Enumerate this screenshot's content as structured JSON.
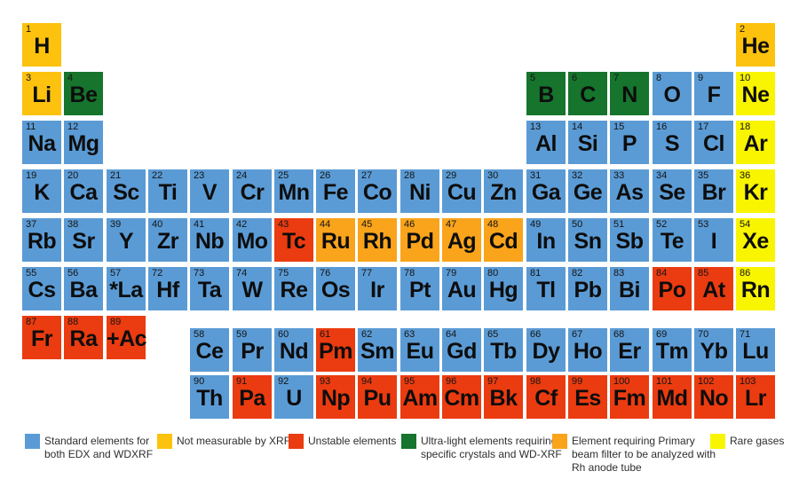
{
  "categories": {
    "std": {
      "name": "standard-edx-wdxrf",
      "color": "#5B9BD5"
    },
    "gold": {
      "name": "not-measurable-by-xrf",
      "color": "#FCC20E"
    },
    "red": {
      "name": "unstable-elements",
      "color": "#EB3B10"
    },
    "green": {
      "name": "ultra-light-elements",
      "color": "#16742D"
    },
    "orange": {
      "name": "primary-beam-filter",
      "color": "#F9A41B"
    },
    "yellow": {
      "name": "rare-gases",
      "color": "#F9F400"
    }
  },
  "legend": [
    {
      "cat": "std",
      "label": "Standard  elements for\nboth EDX and WDXRF"
    },
    {
      "cat": "gold",
      "label": "Not measurable by XRF"
    },
    {
      "cat": "red",
      "label": "Unstable elements"
    },
    {
      "cat": "green",
      "label": "Ultra-light elements requiring\nspecific crystals and WD-XRF"
    },
    {
      "cat": "orange",
      "label": "Element requiring Primary\nbeam filter to be analyzed with\nRh anode tube"
    },
    {
      "cat": "yellow",
      "label": "Rare gases"
    }
  ],
  "elements": [
    {
      "n": 1,
      "sym": "H",
      "row": 1,
      "col": 1,
      "cat": "gold"
    },
    {
      "n": 2,
      "sym": "He",
      "row": 1,
      "col": 18,
      "cat": "gold"
    },
    {
      "n": 3,
      "sym": "Li",
      "row": 2,
      "col": 1,
      "cat": "gold"
    },
    {
      "n": 4,
      "sym": "Be",
      "row": 2,
      "col": 2,
      "cat": "green"
    },
    {
      "n": 5,
      "sym": "B",
      "row": 2,
      "col": 13,
      "cat": "green"
    },
    {
      "n": 6,
      "sym": "C",
      "row": 2,
      "col": 14,
      "cat": "green"
    },
    {
      "n": 7,
      "sym": "N",
      "row": 2,
      "col": 15,
      "cat": "green"
    },
    {
      "n": 8,
      "sym": "O",
      "row": 2,
      "col": 16,
      "cat": "std"
    },
    {
      "n": 9,
      "sym": "F",
      "row": 2,
      "col": 17,
      "cat": "std"
    },
    {
      "n": 10,
      "sym": "Ne",
      "row": 2,
      "col": 18,
      "cat": "yellow"
    },
    {
      "n": 11,
      "sym": "Na",
      "row": 3,
      "col": 1,
      "cat": "std"
    },
    {
      "n": 12,
      "sym": "Mg",
      "row": 3,
      "col": 2,
      "cat": "std"
    },
    {
      "n": 13,
      "sym": "Al",
      "row": 3,
      "col": 13,
      "cat": "std"
    },
    {
      "n": 14,
      "sym": "Si",
      "row": 3,
      "col": 14,
      "cat": "std"
    },
    {
      "n": 15,
      "sym": "P",
      "row": 3,
      "col": 15,
      "cat": "std"
    },
    {
      "n": 16,
      "sym": "S",
      "row": 3,
      "col": 16,
      "cat": "std"
    },
    {
      "n": 17,
      "sym": "Cl",
      "row": 3,
      "col": 17,
      "cat": "std"
    },
    {
      "n": 18,
      "sym": "Ar",
      "row": 3,
      "col": 18,
      "cat": "yellow"
    },
    {
      "n": 19,
      "sym": "K",
      "row": 4,
      "col": 1,
      "cat": "std"
    },
    {
      "n": 20,
      "sym": "Ca",
      "row": 4,
      "col": 2,
      "cat": "std"
    },
    {
      "n": 21,
      "sym": "Sc",
      "row": 4,
      "col": 3,
      "cat": "std"
    },
    {
      "n": 22,
      "sym": "Ti",
      "row": 4,
      "col": 4,
      "cat": "std"
    },
    {
      "n": 23,
      "sym": "V",
      "row": 4,
      "col": 5,
      "cat": "std"
    },
    {
      "n": 24,
      "sym": "Cr",
      "row": 4,
      "col": 6,
      "cat": "std"
    },
    {
      "n": 25,
      "sym": "Mn",
      "row": 4,
      "col": 7,
      "cat": "std"
    },
    {
      "n": 26,
      "sym": "Fe",
      "row": 4,
      "col": 8,
      "cat": "std"
    },
    {
      "n": 27,
      "sym": "Co",
      "row": 4,
      "col": 9,
      "cat": "std"
    },
    {
      "n": 28,
      "sym": "Ni",
      "row": 4,
      "col": 10,
      "cat": "std"
    },
    {
      "n": 29,
      "sym": "Cu",
      "row": 4,
      "col": 11,
      "cat": "std"
    },
    {
      "n": 30,
      "sym": "Zn",
      "row": 4,
      "col": 12,
      "cat": "std"
    },
    {
      "n": 31,
      "sym": "Ga",
      "row": 4,
      "col": 13,
      "cat": "std"
    },
    {
      "n": 32,
      "sym": "Ge",
      "row": 4,
      "col": 14,
      "cat": "std"
    },
    {
      "n": 33,
      "sym": "As",
      "row": 4,
      "col": 15,
      "cat": "std"
    },
    {
      "n": 34,
      "sym": "Se",
      "row": 4,
      "col": 16,
      "cat": "std"
    },
    {
      "n": 35,
      "sym": "Br",
      "row": 4,
      "col": 17,
      "cat": "std"
    },
    {
      "n": 36,
      "sym": "Kr",
      "row": 4,
      "col": 18,
      "cat": "yellow"
    },
    {
      "n": 37,
      "sym": "Rb",
      "row": 5,
      "col": 1,
      "cat": "std"
    },
    {
      "n": 38,
      "sym": "Sr",
      "row": 5,
      "col": 2,
      "cat": "std"
    },
    {
      "n": 39,
      "sym": "Y",
      "row": 5,
      "col": 3,
      "cat": "std"
    },
    {
      "n": 40,
      "sym": "Zr",
      "row": 5,
      "col": 4,
      "cat": "std"
    },
    {
      "n": 41,
      "sym": "Nb",
      "row": 5,
      "col": 5,
      "cat": "std"
    },
    {
      "n": 42,
      "sym": "Mo",
      "row": 5,
      "col": 6,
      "cat": "std"
    },
    {
      "n": 43,
      "sym": "Tc",
      "row": 5,
      "col": 7,
      "cat": "red"
    },
    {
      "n": 44,
      "sym": "Ru",
      "row": 5,
      "col": 8,
      "cat": "orange"
    },
    {
      "n": 45,
      "sym": "Rh",
      "row": 5,
      "col": 9,
      "cat": "orange"
    },
    {
      "n": 46,
      "sym": "Pd",
      "row": 5,
      "col": 10,
      "cat": "orange"
    },
    {
      "n": 47,
      "sym": "Ag",
      "row": 5,
      "col": 11,
      "cat": "orange"
    },
    {
      "n": 48,
      "sym": "Cd",
      "row": 5,
      "col": 12,
      "cat": "orange"
    },
    {
      "n": 49,
      "sym": "In",
      "row": 5,
      "col": 13,
      "cat": "std"
    },
    {
      "n": 50,
      "sym": "Sn",
      "row": 5,
      "col": 14,
      "cat": "std"
    },
    {
      "n": 51,
      "sym": "Sb",
      "row": 5,
      "col": 15,
      "cat": "std"
    },
    {
      "n": 52,
      "sym": "Te",
      "row": 5,
      "col": 16,
      "cat": "std"
    },
    {
      "n": 53,
      "sym": "I",
      "row": 5,
      "col": 17,
      "cat": "std"
    },
    {
      "n": 54,
      "sym": "Xe",
      "row": 5,
      "col": 18,
      "cat": "yellow"
    },
    {
      "n": 55,
      "sym": "Cs",
      "row": 6,
      "col": 1,
      "cat": "std"
    },
    {
      "n": 56,
      "sym": "Ba",
      "row": 6,
      "col": 2,
      "cat": "std"
    },
    {
      "n": 57,
      "sym": "*La",
      "row": 6,
      "col": 3,
      "cat": "std"
    },
    {
      "n": 72,
      "sym": "Hf",
      "row": 6,
      "col": 4,
      "cat": "std"
    },
    {
      "n": 73,
      "sym": "Ta",
      "row": 6,
      "col": 5,
      "cat": "std"
    },
    {
      "n": 74,
      "sym": "W",
      "row": 6,
      "col": 6,
      "cat": "std"
    },
    {
      "n": 75,
      "sym": "Re",
      "row": 6,
      "col": 7,
      "cat": "std"
    },
    {
      "n": 76,
      "sym": "Os",
      "row": 6,
      "col": 8,
      "cat": "std"
    },
    {
      "n": 77,
      "sym": "Ir",
      "row": 6,
      "col": 9,
      "cat": "std"
    },
    {
      "n": 78,
      "sym": "Pt",
      "row": 6,
      "col": 10,
      "cat": "std"
    },
    {
      "n": 79,
      "sym": "Au",
      "row": 6,
      "col": 11,
      "cat": "std"
    },
    {
      "n": 80,
      "sym": "Hg",
      "row": 6,
      "col": 12,
      "cat": "std"
    },
    {
      "n": 81,
      "sym": "Tl",
      "row": 6,
      "col": 13,
      "cat": "std"
    },
    {
      "n": 82,
      "sym": "Pb",
      "row": 6,
      "col": 14,
      "cat": "std"
    },
    {
      "n": 83,
      "sym": "Bi",
      "row": 6,
      "col": 15,
      "cat": "std"
    },
    {
      "n": 84,
      "sym": "Po",
      "row": 6,
      "col": 16,
      "cat": "red"
    },
    {
      "n": 85,
      "sym": "At",
      "row": 6,
      "col": 17,
      "cat": "red"
    },
    {
      "n": 86,
      "sym": "Rn",
      "row": 6,
      "col": 18,
      "cat": "yellow"
    },
    {
      "n": 87,
      "sym": "Fr",
      "row": 7,
      "col": 1,
      "cat": "red"
    },
    {
      "n": 88,
      "sym": "Ra",
      "row": 7,
      "col": 2,
      "cat": "red"
    },
    {
      "n": 89,
      "sym": "+Ac",
      "row": 7,
      "col": 3,
      "cat": "red"
    },
    {
      "n": 58,
      "sym": "Ce",
      "row": 8,
      "col": 5,
      "cat": "std"
    },
    {
      "n": 59,
      "sym": "Pr",
      "row": 8,
      "col": 6,
      "cat": "std"
    },
    {
      "n": 60,
      "sym": "Nd",
      "row": 8,
      "col": 7,
      "cat": "std"
    },
    {
      "n": 61,
      "sym": "Pm",
      "row": 8,
      "col": 8,
      "cat": "red"
    },
    {
      "n": 62,
      "sym": "Sm",
      "row": 8,
      "col": 9,
      "cat": "std"
    },
    {
      "n": 63,
      "sym": "Eu",
      "row": 8,
      "col": 10,
      "cat": "std"
    },
    {
      "n": 64,
      "sym": "Gd",
      "row": 8,
      "col": 11,
      "cat": "std"
    },
    {
      "n": 65,
      "sym": "Tb",
      "row": 8,
      "col": 12,
      "cat": "std"
    },
    {
      "n": 66,
      "sym": "Dy",
      "row": 8,
      "col": 13,
      "cat": "std"
    },
    {
      "n": 67,
      "sym": "Ho",
      "row": 8,
      "col": 14,
      "cat": "std"
    },
    {
      "n": 68,
      "sym": "Er",
      "row": 8,
      "col": 15,
      "cat": "std"
    },
    {
      "n": 69,
      "sym": "Tm",
      "row": 8,
      "col": 16,
      "cat": "std"
    },
    {
      "n": 70,
      "sym": "Yb",
      "row": 8,
      "col": 17,
      "cat": "std"
    },
    {
      "n": 71,
      "sym": "Lu",
      "row": 8,
      "col": 18,
      "cat": "std"
    },
    {
      "n": 90,
      "sym": "Th",
      "row": 9,
      "col": 5,
      "cat": "std"
    },
    {
      "n": 91,
      "sym": "Pa",
      "row": 9,
      "col": 6,
      "cat": "red"
    },
    {
      "n": 92,
      "sym": "U",
      "row": 9,
      "col": 7,
      "cat": "std"
    },
    {
      "n": 93,
      "sym": "Np",
      "row": 9,
      "col": 8,
      "cat": "red"
    },
    {
      "n": 94,
      "sym": "Pu",
      "row": 9,
      "col": 9,
      "cat": "red"
    },
    {
      "n": 95,
      "sym": "Am",
      "row": 9,
      "col": 10,
      "cat": "red"
    },
    {
      "n": 96,
      "sym": "Cm",
      "row": 9,
      "col": 11,
      "cat": "red"
    },
    {
      "n": 97,
      "sym": "Bk",
      "row": 9,
      "col": 12,
      "cat": "red"
    },
    {
      "n": 98,
      "sym": "Cf",
      "row": 9,
      "col": 13,
      "cat": "red"
    },
    {
      "n": 99,
      "sym": "Es",
      "row": 9,
      "col": 14,
      "cat": "red"
    },
    {
      "n": 100,
      "sym": "Fm",
      "row": 9,
      "col": 15,
      "cat": "red"
    },
    {
      "n": 101,
      "sym": "Md",
      "row": 9,
      "col": 16,
      "cat": "red"
    },
    {
      "n": 102,
      "sym": "No",
      "row": 9,
      "col": 17,
      "cat": "red"
    },
    {
      "n": 103,
      "sym": "Lr",
      "row": 9,
      "col": 18,
      "cat": "red"
    }
  ]
}
